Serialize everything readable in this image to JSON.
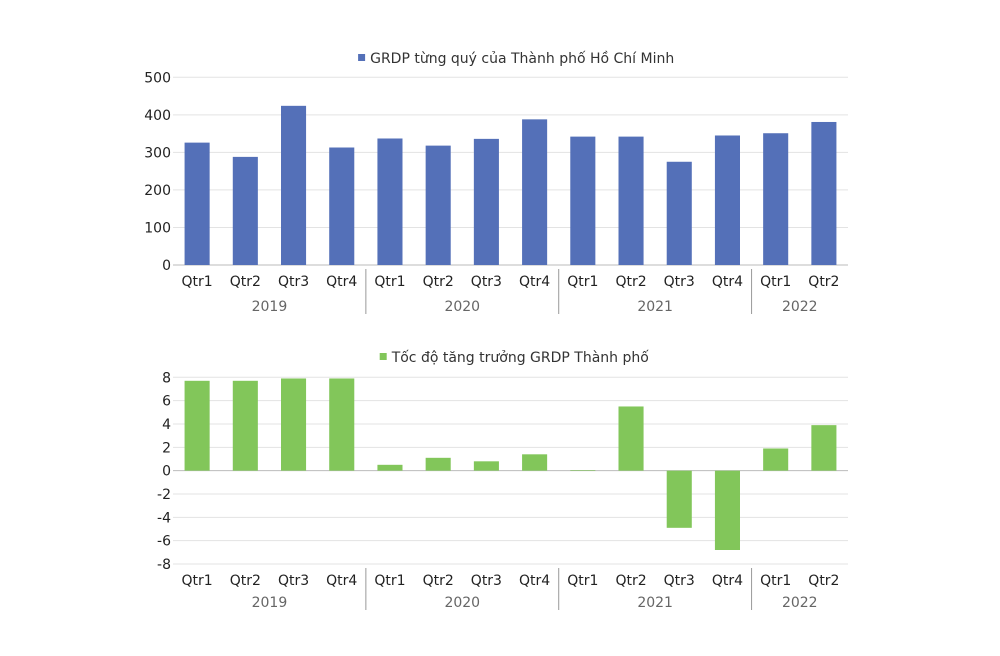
{
  "chart_data": [
    {
      "type": "bar",
      "title": "GRDP từng quý của Thành phố Hồ Chí Minh",
      "legend": "top",
      "color": "#5470b8",
      "ylim": [
        0,
        500
      ],
      "yticks": [
        0,
        100,
        200,
        300,
        400,
        500
      ],
      "grid": true,
      "categories": [
        "Qtr1",
        "Qtr2",
        "Qtr3",
        "Qtr4",
        "Qtr1",
        "Qtr2",
        "Qtr3",
        "Qtr4",
        "Qtr1",
        "Qtr2",
        "Qtr3",
        "Qtr4",
        "Qtr1",
        "Qtr2"
      ],
      "groups": [
        {
          "label": "2019",
          "count": 4
        },
        {
          "label": "2020",
          "count": 4
        },
        {
          "label": "2021",
          "count": 4
        },
        {
          "label": "2022",
          "count": 2
        }
      ],
      "series": [
        {
          "name": "GRDP từng quý của Thành phố Hồ Chí Minh",
          "values": [
            326,
            288,
            424,
            313,
            337,
            318,
            336,
            388,
            342,
            342,
            275,
            345,
            351,
            381
          ]
        }
      ]
    },
    {
      "type": "bar",
      "title": "Tốc độ tăng trưởng GRDP Thành phố",
      "legend": "top",
      "color": "#82c65a",
      "ylim": [
        -8,
        8
      ],
      "yticks": [
        -8,
        -6,
        -4,
        -2,
        0,
        2,
        4,
        6,
        8
      ],
      "grid": true,
      "categories": [
        "Qtr1",
        "Qtr2",
        "Qtr3",
        "Qtr4",
        "Qtr1",
        "Qtr2",
        "Qtr3",
        "Qtr4",
        "Qtr1",
        "Qtr2",
        "Qtr3",
        "Qtr4",
        "Qtr1",
        "Qtr2"
      ],
      "groups": [
        {
          "label": "2019",
          "count": 4
        },
        {
          "label": "2020",
          "count": 4
        },
        {
          "label": "2021",
          "count": 4
        },
        {
          "label": "2022",
          "count": 2
        }
      ],
      "series": [
        {
          "name": "Tốc độ tăng trưởng GRDP Thành phố",
          "values": [
            7.7,
            7.7,
            7.9,
            7.9,
            0.5,
            1.1,
            0.8,
            1.4,
            0.05,
            5.5,
            -4.9,
            -6.8,
            1.9,
            3.9
          ]
        }
      ]
    }
  ]
}
